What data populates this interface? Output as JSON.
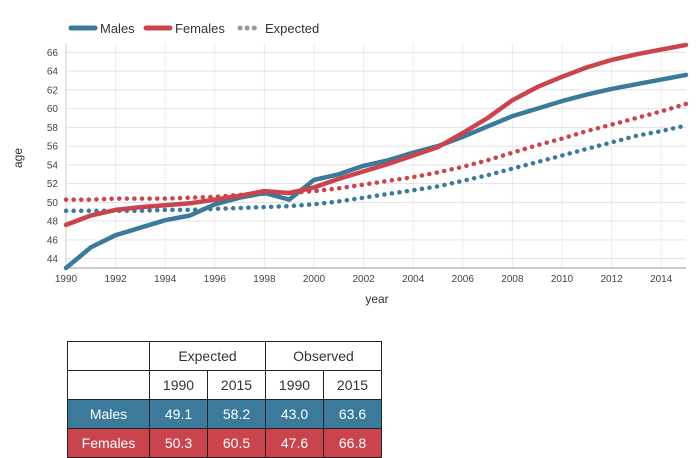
{
  "legend": [
    {
      "label": "Males",
      "style": "solid",
      "color": "#3b7a9a"
    },
    {
      "label": "Females",
      "style": "solid",
      "color": "#c9444d"
    },
    {
      "label": "Expected",
      "style": "dotted",
      "color": "#999999"
    }
  ],
  "chart_data": {
    "type": "line",
    "xlabel": "year",
    "ylabel": "age",
    "xlim": [
      1990,
      2015
    ],
    "ylim": [
      43,
      67
    ],
    "xticks": [
      "1990",
      "1992",
      "1994",
      "1996",
      "1998",
      "2000",
      "2002",
      "2004",
      "2006",
      "2008",
      "2010",
      "2012",
      "2014"
    ],
    "yticks": [
      "44",
      "46",
      "48",
      "50",
      "52",
      "54",
      "56",
      "58",
      "60",
      "62",
      "64",
      "66"
    ],
    "grid": true,
    "legend_position": "top-left",
    "x": [
      1990,
      1991,
      1992,
      1993,
      1994,
      1995,
      1996,
      1997,
      1998,
      1999,
      2000,
      2001,
      2002,
      2003,
      2004,
      2005,
      2006,
      2007,
      2008,
      2009,
      2010,
      2011,
      2012,
      2013,
      2014,
      2015
    ],
    "series": [
      {
        "name": "Males",
        "style": "solid",
        "color": "#3b7a9a",
        "values": [
          43.0,
          45.2,
          46.5,
          47.3,
          48.1,
          48.6,
          49.8,
          50.5,
          51.0,
          50.3,
          52.4,
          53.0,
          53.9,
          54.5,
          55.3,
          56.0,
          57.0,
          58.1,
          59.2,
          60.0,
          60.8,
          61.5,
          62.1,
          62.6,
          63.1,
          63.6
        ]
      },
      {
        "name": "Females",
        "style": "solid",
        "color": "#c9444d",
        "values": [
          47.6,
          48.6,
          49.2,
          49.5,
          49.7,
          49.9,
          50.3,
          50.7,
          51.2,
          51.0,
          51.6,
          52.5,
          53.3,
          54.1,
          55.0,
          55.9,
          57.4,
          59.0,
          60.9,
          62.3,
          63.4,
          64.4,
          65.2,
          65.8,
          66.3,
          66.8
        ]
      },
      {
        "name": "Expected",
        "style": "dotted",
        "color": "#3b7a9a",
        "values": [
          49.1,
          49.1,
          49.1,
          49.1,
          49.2,
          49.2,
          49.3,
          49.4,
          49.5,
          49.6,
          49.8,
          50.1,
          50.5,
          50.9,
          51.3,
          51.7,
          52.3,
          52.9,
          53.6,
          54.3,
          55.0,
          55.7,
          56.4,
          57.1,
          57.6,
          58.2
        ]
      },
      {
        "name": "Expected",
        "style": "dotted",
        "color": "#c9444d",
        "values": [
          50.3,
          50.3,
          50.4,
          50.4,
          50.4,
          50.5,
          50.6,
          50.8,
          50.9,
          51.0,
          51.2,
          51.5,
          51.9,
          52.3,
          52.7,
          53.2,
          53.8,
          54.5,
          55.3,
          56.1,
          56.8,
          57.6,
          58.3,
          59.0,
          59.7,
          60.5
        ]
      }
    ]
  },
  "table": {
    "group_headers": [
      "Expected",
      "Observed"
    ],
    "year_headers": [
      "1990",
      "2015",
      "1990",
      "2015"
    ],
    "rows": [
      {
        "label": "Males",
        "values": [
          "49.1",
          "58.2",
          "43.0",
          "63.6"
        ]
      },
      {
        "label": "Females",
        "values": [
          "50.3",
          "60.5",
          "47.6",
          "66.8"
        ]
      }
    ]
  }
}
